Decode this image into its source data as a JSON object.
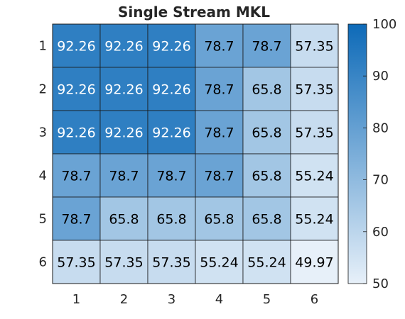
{
  "chart_data": {
    "type": "heatmap",
    "title": "Single Stream MKL",
    "xlabel": "",
    "ylabel": "",
    "x_categories": [
      "1",
      "2",
      "3",
      "4",
      "5",
      "6"
    ],
    "y_categories": [
      "1",
      "2",
      "3",
      "4",
      "5",
      "6"
    ],
    "values": [
      [
        92.26,
        92.26,
        92.26,
        78.7,
        78.7,
        57.35
      ],
      [
        92.26,
        92.26,
        92.26,
        78.7,
        65.8,
        57.35
      ],
      [
        92.26,
        92.26,
        92.26,
        78.7,
        65.8,
        57.35
      ],
      [
        78.7,
        78.7,
        78.7,
        78.7,
        65.8,
        55.24
      ],
      [
        78.7,
        65.8,
        65.8,
        65.8,
        65.8,
        55.24
      ],
      [
        57.35,
        57.35,
        57.35,
        55.24,
        55.24,
        49.97
      ]
    ],
    "value_labels": [
      [
        "92.26",
        "92.26",
        "92.26",
        "78.7",
        "78.7",
        "57.35"
      ],
      [
        "92.26",
        "92.26",
        "92.26",
        "78.7",
        "65.8",
        "57.35"
      ],
      [
        "92.26",
        "92.26",
        "92.26",
        "78.7",
        "65.8",
        "57.35"
      ],
      [
        "78.7",
        "78.7",
        "78.7",
        "78.7",
        "65.8",
        "55.24"
      ],
      [
        "78.7",
        "65.8",
        "65.8",
        "65.8",
        "65.8",
        "55.24"
      ],
      [
        "57.35",
        "57.35",
        "57.35",
        "55.24",
        "55.24",
        "49.97"
      ]
    ],
    "colorbar": {
      "range": [
        50,
        100
      ],
      "ticks": [
        50,
        60,
        70,
        80,
        90,
        100
      ],
      "tick_labels": [
        "50",
        "60",
        "70",
        "80",
        "90",
        "100"
      ],
      "low_color": "#e7f0f9",
      "high_color": "#0d6ab8"
    },
    "colors": {
      "dark_text": "#000000",
      "light_text": "#ffffff",
      "grid_line": "#1a1a1a",
      "axis_text": "#262626"
    },
    "grid": true
  }
}
